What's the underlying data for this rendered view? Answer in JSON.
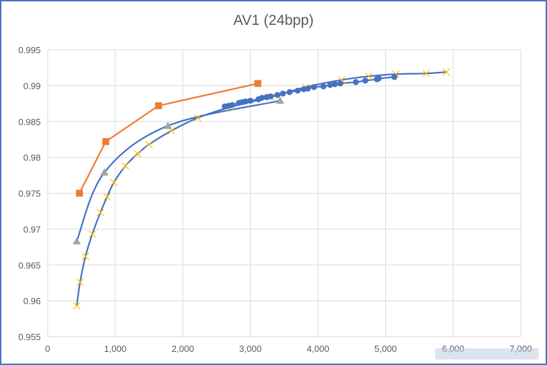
{
  "chart_data": {
    "type": "scatter",
    "title": "AV1 (24bpp)",
    "xlabel": "",
    "ylabel": "",
    "xlim": [
      0,
      7000
    ],
    "ylim": [
      0.955,
      0.995
    ],
    "x_ticks": [
      "0",
      "1,000",
      "2,000",
      "3,000",
      "4,000",
      "5,000",
      "6,000",
      "7,000"
    ],
    "y_ticks": [
      "0.955",
      "0.96",
      "0.965",
      "0.97",
      "0.975",
      "0.98",
      "0.985",
      "0.99",
      "0.995"
    ],
    "grid": true,
    "legend": "none",
    "series": [
      {
        "marker": "x",
        "line": "smooth",
        "color": "#ffc000",
        "line_color": "#4472c4",
        "points": [
          [
            430,
            0.9593
          ],
          [
            480,
            0.9626
          ],
          [
            560,
            0.9662
          ],
          [
            660,
            0.9693
          ],
          [
            780,
            0.9723
          ],
          [
            880,
            0.9745
          ],
          [
            980,
            0.9765
          ],
          [
            1150,
            0.9788
          ],
          [
            1330,
            0.9805
          ],
          [
            1500,
            0.9818
          ],
          [
            1830,
            0.9837
          ],
          [
            2220,
            0.9855
          ],
          [
            2700,
            0.987
          ],
          [
            3300,
            0.9884
          ],
          [
            3820,
            0.9898
          ],
          [
            4350,
            0.9908
          ],
          [
            4750,
            0.9913
          ],
          [
            5150,
            0.9916
          ],
          [
            5600,
            0.9917
          ],
          [
            5900,
            0.9919
          ]
        ]
      },
      {
        "marker": "circle",
        "line": "smooth",
        "color": "#4472c4",
        "line_color": "#4472c4",
        "points": [
          [
            2620,
            0.9871
          ],
          [
            2680,
            0.9872
          ],
          [
            2730,
            0.9873
          ],
          [
            2830,
            0.9876
          ],
          [
            2880,
            0.9877
          ],
          [
            2930,
            0.9878
          ],
          [
            3000,
            0.9879
          ],
          [
            3120,
            0.9881
          ],
          [
            3170,
            0.9883
          ],
          [
            3240,
            0.9884
          ],
          [
            3300,
            0.9885
          ],
          [
            3400,
            0.9887
          ],
          [
            3480,
            0.9889
          ],
          [
            3580,
            0.9891
          ],
          [
            3700,
            0.9893
          ],
          [
            3790,
            0.9895
          ],
          [
            3850,
            0.9896
          ],
          [
            3940,
            0.9898
          ],
          [
            4080,
            0.9899
          ],
          [
            4180,
            0.9901
          ],
          [
            4250,
            0.9902
          ],
          [
            4330,
            0.9903
          ],
          [
            4560,
            0.9905
          ],
          [
            4700,
            0.9907
          ],
          [
            4870,
            0.9909
          ],
          [
            4900,
            0.991
          ],
          [
            5130,
            0.9912
          ]
        ]
      },
      {
        "marker": "triangle",
        "line": "smooth",
        "color": "#a5a5a5",
        "line_color": "#4472c4",
        "points": [
          [
            430,
            0.9683
          ],
          [
            840,
            0.9779
          ],
          [
            1780,
            0.9844
          ],
          [
            3440,
            0.9879
          ]
        ]
      },
      {
        "marker": "square",
        "line": "straight",
        "color": "#ed7d31",
        "line_color": "#ed7d31",
        "points": [
          [
            470,
            0.975
          ],
          [
            860,
            0.9822
          ],
          [
            1640,
            0.9872
          ],
          [
            3110,
            0.9903
          ]
        ]
      }
    ]
  }
}
